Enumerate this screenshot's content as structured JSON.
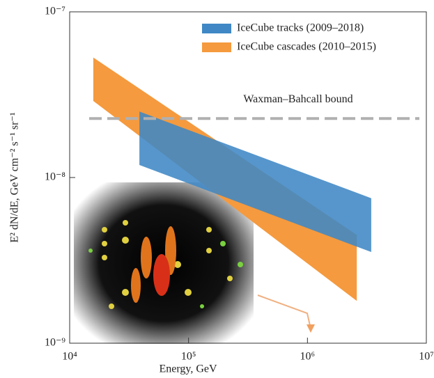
{
  "chart_data": {
    "type": "band",
    "x_label": "Energy, GeV",
    "y_label": "E² dN/dE, GeV cm⁻² s⁻¹ sr⁻¹",
    "xscale": "log",
    "yscale": "log",
    "xlim": [
      10000,
      10000000
    ],
    "ylim": [
      1e-09,
      1e-07
    ],
    "xticks": [
      {
        "value": 10000,
        "label": "10⁴"
      },
      {
        "value": 100000,
        "label": "10⁵"
      },
      {
        "value": 1000000,
        "label": "10⁶"
      },
      {
        "value": 10000000,
        "label": "10⁷"
      }
    ],
    "yticks": [
      {
        "value": 1e-09,
        "label": "10⁻⁹"
      },
      {
        "value": 1e-08,
        "label": "10⁻⁸"
      },
      {
        "value": 1e-07,
        "label": "10⁻⁷"
      }
    ],
    "legend": "upper right",
    "series": [
      {
        "name": "IceCube tracks (2009–2018)",
        "color": "#3f88c5",
        "x": [
          38600,
          3440000
        ],
        "upper": [
          2.5e-08,
          7.5e-09
        ],
        "lower": [
          1.19e-08,
          3.55e-09
        ]
      },
      {
        "name": "IceCube cascades (2010–2015)",
        "color": "#f59a3e",
        "x": [
          15800,
          2600000
        ],
        "upper": [
          5.3e-08,
          4.5e-09
        ],
        "lower": [
          2.9e-08,
          1.8e-09
        ]
      }
    ],
    "reference_line": {
      "label": "Waxman–Bahcall bound",
      "value": 2.27e-08,
      "color": "#b0b0b0"
    }
  }
}
